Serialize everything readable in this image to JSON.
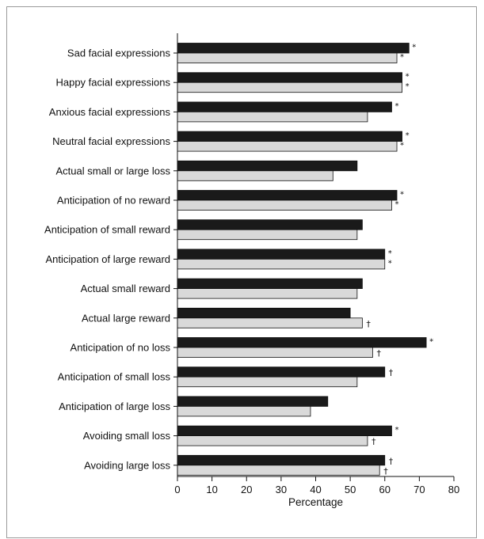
{
  "chart_data": {
    "type": "bar",
    "orientation": "horizontal",
    "title": "",
    "xlabel": "Percentage",
    "ylabel": "",
    "xlim": [
      0,
      80
    ],
    "xticks": [
      "0",
      "10",
      "20",
      "30",
      "40",
      "50",
      "60",
      "70",
      "80"
    ],
    "grid": false,
    "legend": "none",
    "categories": [
      "Sad facial expressions",
      "Happy facial expressions",
      "Anxious facial expressions",
      "Neutral facial expressions",
      "Actual small or large loss",
      "Anticipation of no reward",
      "Anticipation of small reward",
      "Anticipation of large reward",
      "Actual small reward",
      "Actual large reward",
      "Anticipation of no loss",
      "Anticipation of small loss",
      "Anticipation of large loss",
      "Avoiding small loss",
      "Avoiding large loss"
    ],
    "series": [
      {
        "color": "#1a1a1a",
        "values": [
          67,
          65,
          62,
          65,
          52,
          63.5,
          53.5,
          60,
          53.5,
          50,
          72,
          60,
          43.5,
          62,
          60
        ],
        "marks": [
          "*",
          "*",
          "*",
          "*",
          "",
          "*",
          "",
          "*",
          "",
          "",
          "*",
          "†",
          "",
          "*",
          "†"
        ]
      },
      {
        "color": "#d9d9d9",
        "values": [
          63.5,
          65,
          55,
          63.5,
          45,
          62,
          52,
          60,
          52,
          53.5,
          56.5,
          52,
          38.5,
          55,
          58.5
        ],
        "marks": [
          "*",
          "*",
          "",
          "*",
          "",
          "*",
          "",
          "*",
          "",
          "†",
          "†",
          "",
          "",
          "†",
          "†"
        ]
      }
    ]
  }
}
